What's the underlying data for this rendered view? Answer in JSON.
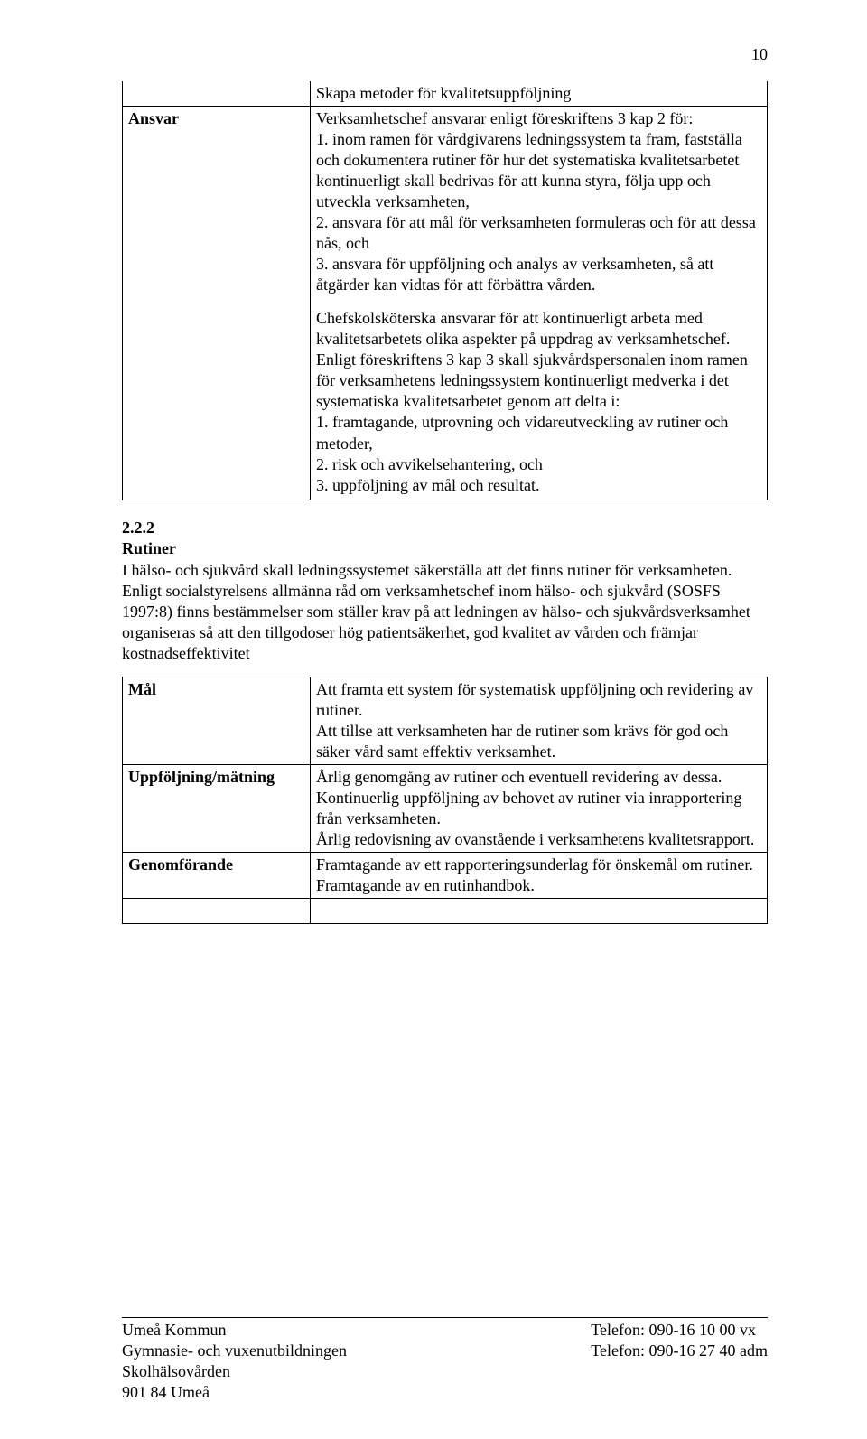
{
  "page_number": "10",
  "table1": {
    "row1_label": "",
    "row1_text": "Skapa metoder för kvalitetsuppföljning",
    "row2_label": "Ansvar",
    "row2_para1": "Verksamhetschef ansvarar enligt föreskriftens 3 kap 2 för:\n1. inom ramen för vårdgivarens ledningssystem ta fram, fastställa och dokumentera rutiner för hur det systematiska kvalitetsarbetet kontinuerligt skall bedrivas för att kunna styra, följa upp och utveckla verksamheten,\n2. ansvara för att mål för verksamheten formuleras och för att dessa nås, och\n3. ansvara för uppföljning och analys av verksamheten, så att åtgärder kan vidtas för att förbättra vården.",
    "row2_para2": "Chefskolsköterska ansvarar för att kontinuerligt arbeta med kvalitetsarbetets olika aspekter på uppdrag av verksamhetschef.\nEnligt föreskriftens 3 kap 3 skall sjukvårdspersonalen inom ramen för verksamhetens ledningssystem kontinuerligt medverka i det systematiska kvalitetsarbetet genom att delta i:\n1. framtagande, utprovning och vidareutveckling av rutiner och metoder,\n2. risk och avvikelsehantering, och\n3. uppföljning av mål och resultat."
  },
  "section": {
    "number": "2.2.2",
    "title": "Rutiner",
    "body": "I hälso- och sjukvård skall ledningssystemet säkerställa att det finns rutiner för verksamheten. Enligt socialstyrelsens allmänna råd om verksamhetschef inom hälso- och sjukvård (SOSFS 1997:8) finns bestämmelser som ställer krav på att ledningen av hälso- och sjukvårdsverksamhet organiseras så att den tillgodoser hög patientsäkerhet, god kvalitet av vården och främjar kostnadseffektivitet"
  },
  "table2": {
    "row1_label": "Mål",
    "row1_text": "Att framta ett system för systematisk uppföljning och revidering av rutiner.\nAtt tillse att verksamheten har de rutiner som krävs för god och säker vård samt effektiv verksamhet.",
    "row2_label": "Uppföljning/mätning",
    "row2_text": "Årlig genomgång av rutiner och eventuell revidering av dessa.\nKontinuerlig uppföljning av behovet av rutiner via inrapportering från verksamheten.\nÅrlig redovisning av ovanstående i verksamhetens kvalitetsrapport.",
    "row3_label": "Genomförande",
    "row3_text": "Framtagande av ett rapporteringsunderlag för önskemål om rutiner.\nFramtagande av en rutinhandbok."
  },
  "footer": {
    "left": "Umeå Kommun\nGymnasie- och vuxenutbildningen\nSkolhälsovården\n901 84 Umeå",
    "right": "Telefon: 090-16 10 00 vx\nTelefon: 090-16 27 40 adm"
  }
}
